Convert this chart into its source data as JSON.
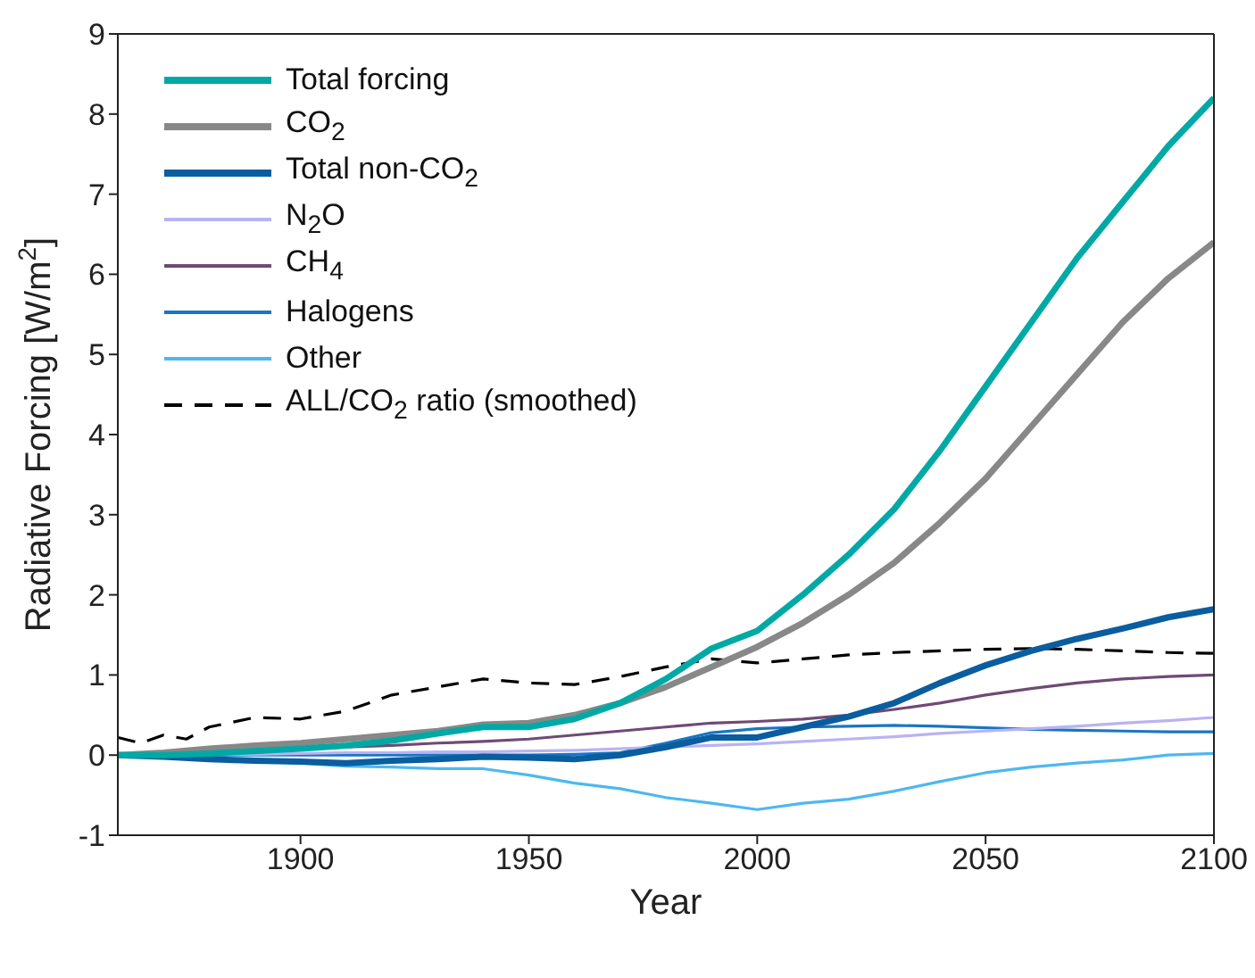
{
  "chart_data": {
    "type": "line",
    "xlabel": "Year",
    "ylabel": "Radiative Forcing [W/m$^{2}$]",
    "xlim": [
      1860,
      2100
    ],
    "xticks": [
      1900,
      1950,
      2000,
      2050,
      2100
    ],
    "ylim": [
      -1,
      9
    ],
    "yticks": [
      -1,
      0,
      1,
      2,
      3,
      4,
      5,
      6,
      7,
      8,
      9
    ],
    "grid": false,
    "legend": "top left",
    "marker": "none",
    "x": [
      1860,
      1870,
      1880,
      1890,
      1900,
      1910,
      1920,
      1930,
      1940,
      1950,
      1960,
      1970,
      1980,
      1990,
      2000,
      2010,
      2020,
      2030,
      2040,
      2050,
      2060,
      2070,
      2080,
      2090,
      2100
    ],
    "series": [
      {
        "name": "Total forcing",
        "color": "#00a9a5",
        "values": [
          0,
          0,
          0.02,
          0.05,
          0.08,
          0.12,
          0.18,
          0.27,
          0.35,
          0.35,
          0.45,
          0.65,
          0.95,
          1.33,
          1.55,
          2.0,
          2.5,
          3.07,
          3.8,
          4.6,
          5.4,
          6.2,
          6.9,
          7.6,
          8.2
        ]
      },
      {
        "name": "CO$_{2}$",
        "color": "#888888",
        "values": [
          0,
          0.03,
          0.08,
          0.12,
          0.15,
          0.2,
          0.25,
          0.3,
          0.38,
          0.4,
          0.5,
          0.65,
          0.85,
          1.1,
          1.35,
          1.65,
          2.0,
          2.4,
          2.9,
          3.45,
          4.1,
          4.75,
          5.4,
          5.95,
          6.4
        ]
      },
      {
        "name": "Total non-CO$_{2}$",
        "color": "#0a5d9e",
        "values": [
          0,
          -0.02,
          -0.05,
          -0.07,
          -0.08,
          -0.1,
          -0.07,
          -0.05,
          -0.02,
          -0.03,
          -0.05,
          0.0,
          0.1,
          0.22,
          0.22,
          0.35,
          0.48,
          0.65,
          0.9,
          1.12,
          1.3,
          1.45,
          1.58,
          1.72,
          1.82
        ]
      },
      {
        "name": "N$_{2}$O",
        "color": "#b9b3f2",
        "values": [
          0,
          0,
          0.01,
          0.01,
          0.02,
          0.03,
          0.03,
          0.04,
          0.04,
          0.05,
          0.06,
          0.08,
          0.1,
          0.12,
          0.14,
          0.17,
          0.2,
          0.23,
          0.27,
          0.3,
          0.33,
          0.36,
          0.4,
          0.43,
          0.47
        ]
      },
      {
        "name": "CH$_{4}$",
        "color": "#6f4a75",
        "values": [
          -0.02,
          0.0,
          0.03,
          0.05,
          0.07,
          0.1,
          0.12,
          0.15,
          0.17,
          0.2,
          0.25,
          0.3,
          0.35,
          0.4,
          0.42,
          0.45,
          0.5,
          0.57,
          0.65,
          0.75,
          0.83,
          0.9,
          0.95,
          0.98,
          1.0
        ]
      },
      {
        "name": "Halogens",
        "color": "#1a75c4",
        "values": [
          0,
          0,
          0,
          0,
          0,
          0,
          0,
          0,
          0,
          0,
          0.01,
          0.03,
          0.15,
          0.28,
          0.33,
          0.35,
          0.36,
          0.37,
          0.36,
          0.34,
          0.32,
          0.31,
          0.3,
          0.29,
          0.29
        ]
      },
      {
        "name": "Other",
        "color": "#4db8ee",
        "values": [
          0.02,
          0,
          -0.05,
          -0.08,
          -0.1,
          -0.14,
          -0.15,
          -0.17,
          -0.17,
          -0.25,
          -0.35,
          -0.42,
          -0.53,
          -0.6,
          -0.68,
          -0.6,
          -0.55,
          -0.45,
          -0.33,
          -0.22,
          -0.15,
          -0.1,
          -0.06,
          0.0,
          0.02
        ]
      },
      {
        "name": "ALL/CO$_{2}$ ratio (smoothed)",
        "color": "#000000",
        "line_style": "dashed",
        "x": [
          1860,
          1865,
          1870,
          1875,
          1880,
          1890,
          1900,
          1910,
          1920,
          1930,
          1940,
          1950,
          1960,
          1970,
          1980,
          1990,
          2000,
          2010,
          2020,
          2030,
          2040,
          2050,
          2060,
          2070,
          2080,
          2090,
          2100
        ],
        "values": [
          0.22,
          0.15,
          0.25,
          0.2,
          0.35,
          0.47,
          0.45,
          0.55,
          0.75,
          0.85,
          0.95,
          0.9,
          0.88,
          0.98,
          1.1,
          1.2,
          1.15,
          1.2,
          1.25,
          1.28,
          1.3,
          1.32,
          1.33,
          1.32,
          1.3,
          1.28,
          1.27
        ]
      }
    ]
  }
}
